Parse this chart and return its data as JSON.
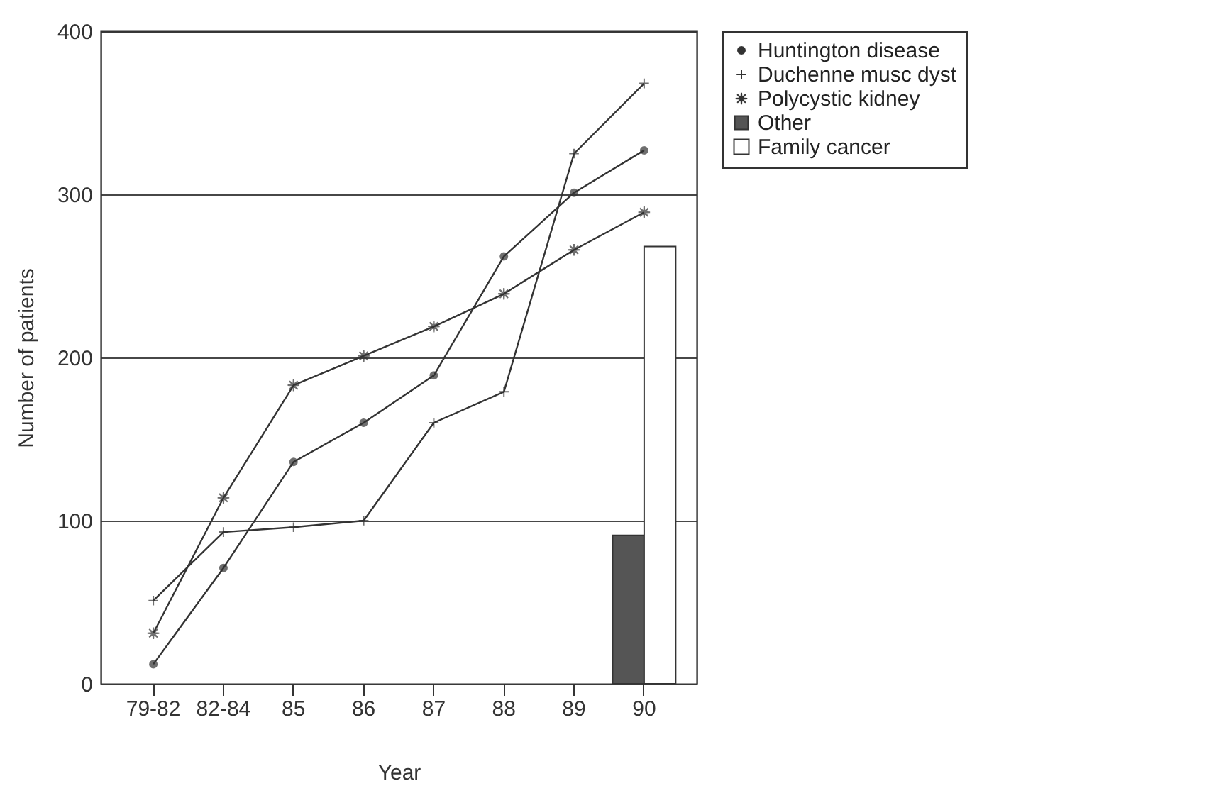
{
  "chart_data": {
    "type": "line",
    "xlabel": "Year",
    "ylabel": "Number of patients",
    "categories": [
      "79-82",
      "82-84",
      "85",
      "86",
      "87",
      "88",
      "89",
      "90"
    ],
    "ylim": [
      0,
      400
    ],
    "yticks": [
      0,
      100,
      200,
      300,
      400
    ],
    "grid": "y",
    "legend": "right",
    "series": [
      {
        "name": "Huntington disease",
        "color": "#333333",
        "marker": "circle",
        "values": [
          12,
          71,
          136,
          160,
          189,
          262,
          301,
          327
        ]
      },
      {
        "name": "Duchenne musc dyst",
        "color": "#333333",
        "marker": "cross",
        "values": [
          51,
          93,
          96,
          100,
          160,
          179,
          325,
          368
        ]
      },
      {
        "name": "Polycystic kidney",
        "color": "#333333",
        "marker": "star",
        "values": [
          31,
          114,
          183,
          201,
          219,
          239,
          266,
          289
        ]
      },
      {
        "name": "Other",
        "type": "bar",
        "color": "#555555",
        "values": [
          null,
          null,
          null,
          null,
          null,
          null,
          null,
          91
        ]
      },
      {
        "name": "Family cancer",
        "type": "bar",
        "color": "#ffffff",
        "values": [
          null,
          null,
          null,
          null,
          null,
          null,
          null,
          268
        ]
      }
    ]
  }
}
